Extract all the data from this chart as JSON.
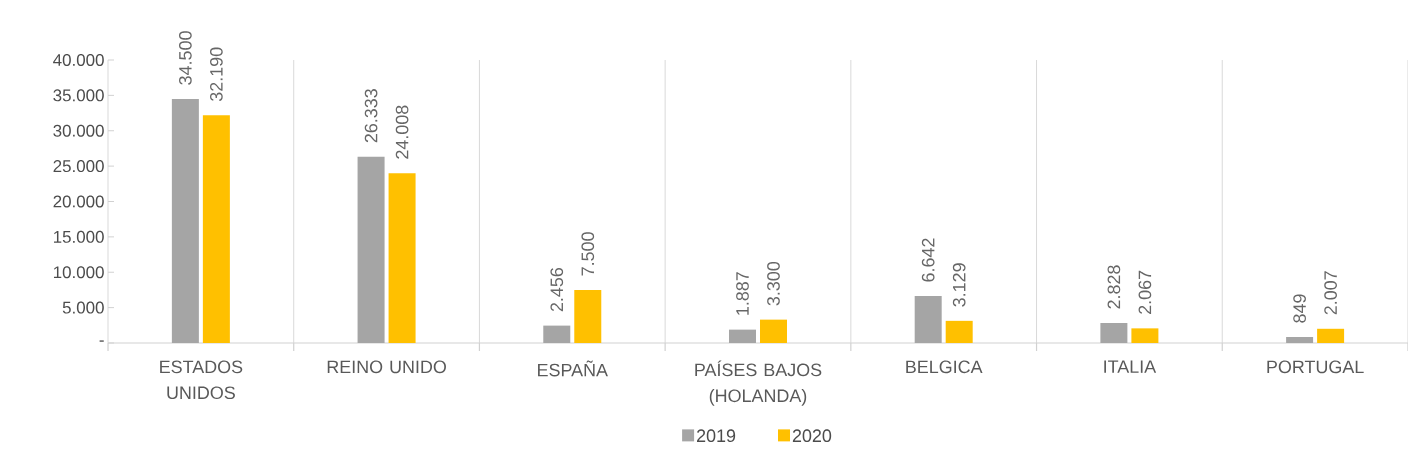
{
  "chart_data": {
    "type": "bar",
    "categories": [
      "ESTADOS UNIDOS",
      "REINO UNIDO",
      "ESPAÑA",
      "PAÍSES BAJOS (HOLANDA)",
      "BELGICA",
      "ITALIA",
      "PORTUGAL"
    ],
    "series": [
      {
        "name": "2019",
        "color": "#a5a5a5",
        "values": [
          34500,
          26333,
          2456,
          1887,
          6642,
          2828,
          849
        ],
        "value_labels": [
          "34.500",
          "26.333",
          "2.456",
          "1.887",
          "6.642",
          "2.828",
          "849"
        ]
      },
      {
        "name": "2020",
        "color": "#ffc000",
        "values": [
          32190,
          24008,
          7500,
          3300,
          3129,
          2067,
          2007
        ],
        "value_labels": [
          "32.190",
          "24.008",
          "7.500",
          "3.300",
          "3.129",
          "2.067",
          "2.007"
        ]
      }
    ],
    "ylim": [
      0,
      40000
    ],
    "yticks": [
      {
        "value": 0,
        "label": "-"
      },
      {
        "value": 5000,
        "label": "5.000"
      },
      {
        "value": 10000,
        "label": "10.000"
      },
      {
        "value": 15000,
        "label": "15.000"
      },
      {
        "value": 20000,
        "label": "20.000"
      },
      {
        "value": 25000,
        "label": "25.000"
      },
      {
        "value": 30000,
        "label": "30.000"
      },
      {
        "value": 35000,
        "label": "35.000"
      },
      {
        "value": 40000,
        "label": "40.000"
      }
    ],
    "grid": "x",
    "legend": "bottom"
  }
}
